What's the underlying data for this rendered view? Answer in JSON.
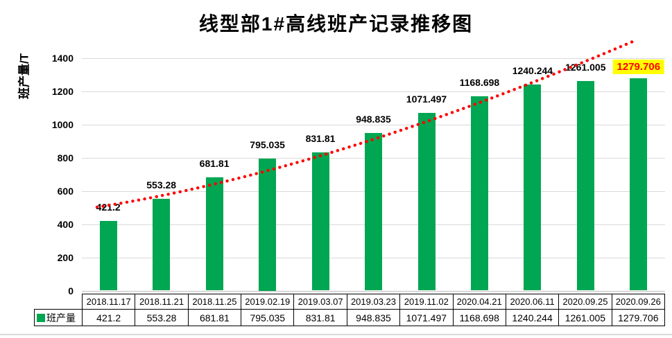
{
  "title": "线型部1#高线班产记录推移图",
  "y_axis": {
    "title": "班产量/T",
    "ticks": [
      0,
      200,
      400,
      600,
      800,
      1000,
      1200,
      1400
    ]
  },
  "legend": {
    "label": "班产量",
    "swatch_color": "#00A651"
  },
  "colors": {
    "bar": "#00A651",
    "trendline": "#FF0000",
    "highlight_background": "#FFFF00",
    "highlight_text": "#FF0000",
    "gridline": "#D9D9D9",
    "table_border": "#000000"
  },
  "chart_data": {
    "type": "bar",
    "title": "线型部1#高线班产记录推移图",
    "xlabel": "",
    "ylabel": "班产量/T",
    "ylim": [
      0,
      1400
    ],
    "ytick_interval": 200,
    "grid": true,
    "legend_position": "bottom-left-table",
    "categories": [
      "2018.11.17",
      "2018.11.21",
      "2018.11.25",
      "2019.02.19",
      "2019.03.07",
      "2019.03.23",
      "2019.11.02",
      "2020.04.21",
      "2020.06.11",
      "2020.09.25",
      "2020.09.26"
    ],
    "series": [
      {
        "name": "班产量",
        "color": "#00A651",
        "values": [
          421.2,
          553.28,
          681.81,
          795.035,
          831.81,
          948.835,
          1071.497,
          1168.698,
          1240.244,
          1261.005,
          1279.706
        ]
      }
    ],
    "data_labels": [
      "421.2",
      "553.28",
      "681.81",
      "795.035",
      "831.81",
      "948.835",
      "1071.497",
      "1168.698",
      "1240.244",
      "1261.005",
      "1279.706"
    ],
    "highlighted_label_index": 10,
    "trendline": {
      "style": "dotted",
      "color": "#FF0000",
      "shape": "exponential-upward"
    }
  }
}
